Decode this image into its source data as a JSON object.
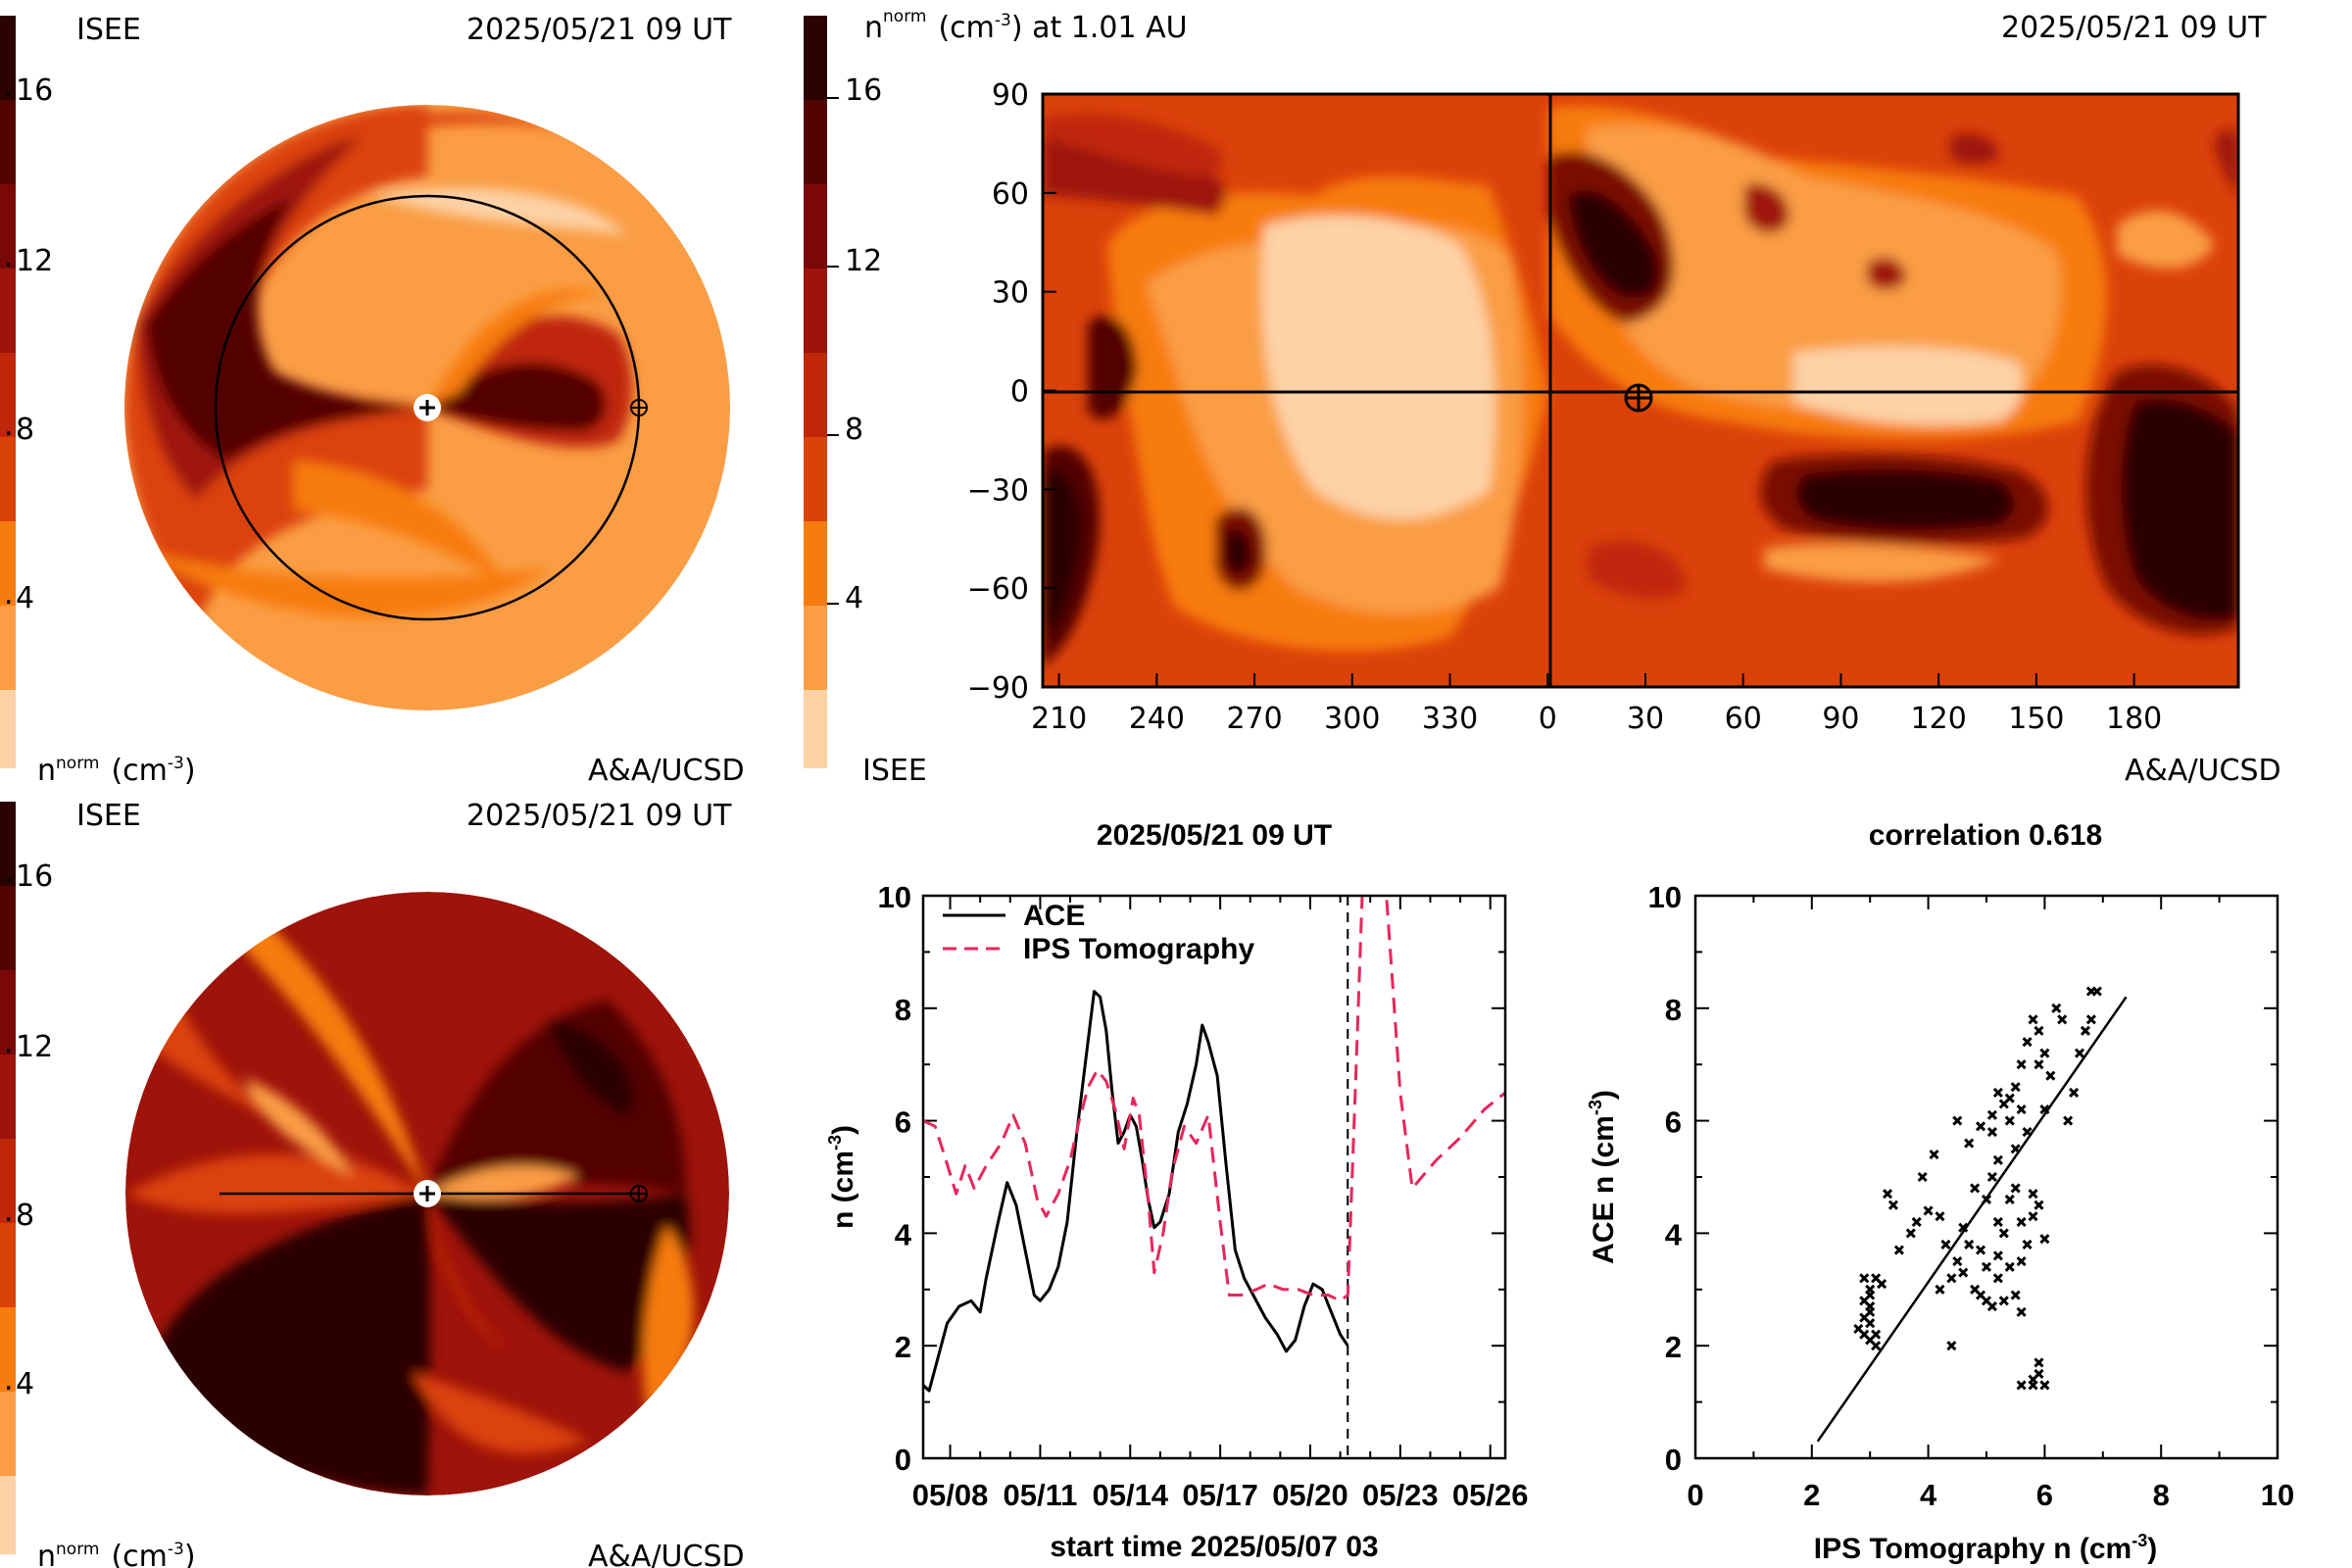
{
  "colors": {
    "scale": [
      "#fdd2a6",
      "#fa9d45",
      "#f77c0f",
      "#ec5a0b",
      "#db420a",
      "#c0270a",
      "#9e130a",
      "#7a0806",
      "#520401",
      "#2b0300"
    ],
    "ace_line": "#000000",
    "ips_line": "#e8265a"
  },
  "top_left": {
    "source": "ISEE",
    "date": "2025/05/21 09 UT",
    "unit_label": "n",
    "unit_sup": "norm",
    "unit_rest": "(cm",
    "unit_exp": "-3",
    "credit": "A&A/UCSD",
    "colorbar_ticks": [
      "4",
      "8",
      "12",
      "16"
    ]
  },
  "bottom_left": {
    "source": "ISEE",
    "date": "2025/05/21 09 UT",
    "unit_label": "n",
    "unit_sup": "norm",
    "unit_rest": "(cm",
    "unit_exp": "-3",
    "credit": "A&A/UCSD",
    "colorbar_ticks": [
      "4",
      "8",
      "12",
      "16"
    ]
  },
  "synoptic_map": {
    "title_n": "n",
    "title_sup": "norm",
    "title_rest": "(cm",
    "title_exp": "-3",
    "title_tail": ") at 1.01 AU",
    "date": "2025/05/21 09 UT",
    "source": "ISEE",
    "credit": "A&A/UCSD",
    "colorbar_ticks": [
      "4",
      "8",
      "12",
      "16"
    ],
    "lat_ticks": [
      "90",
      "60",
      "30",
      "0",
      "−30",
      "−60",
      "−90"
    ],
    "lon_ticks": [
      "210",
      "240",
      "270",
      "300",
      "330",
      "0",
      "30",
      "60",
      "90",
      "120",
      "150",
      "180"
    ]
  },
  "chart_data": [
    {
      "type": "line",
      "title": "2025/05/21 09 UT",
      "xlabel": "start time 2025/05/07 03",
      "ylabel_main": "n (cm",
      "ylabel_exp": "-3",
      "ylabel_close": ")",
      "x_tick_labels": [
        "05/08",
        "05/11",
        "05/14",
        "05/17",
        "05/20",
        "05/23",
        "05/26"
      ],
      "x_tick_days": [
        1,
        4,
        7,
        10,
        13,
        16,
        19
      ],
      "xlim_days": [
        0.1,
        19.5
      ],
      "ylim": [
        0,
        10
      ],
      "y_ticks": [
        "0",
        "2",
        "4",
        "6",
        "8",
        "10"
      ],
      "current_time_day": 14.25,
      "legend": "top-left",
      "series": [
        {
          "name": "ACE",
          "style": "solid",
          "points": [
            [
              0.1,
              1.3
            ],
            [
              0.3,
              1.2
            ],
            [
              0.6,
              1.8
            ],
            [
              0.9,
              2.4
            ],
            [
              1.3,
              2.7
            ],
            [
              1.7,
              2.8
            ],
            [
              2.0,
              2.6
            ],
            [
              2.2,
              3.2
            ],
            [
              2.6,
              4.2
            ],
            [
              2.9,
              4.9
            ],
            [
              3.2,
              4.5
            ],
            [
              3.5,
              3.7
            ],
            [
              3.8,
              2.9
            ],
            [
              4.0,
              2.8
            ],
            [
              4.3,
              3.0
            ],
            [
              4.6,
              3.4
            ],
            [
              4.9,
              4.2
            ],
            [
              5.2,
              5.7
            ],
            [
              5.5,
              7.0
            ],
            [
              5.8,
              8.3
            ],
            [
              6.0,
              8.2
            ],
            [
              6.2,
              7.6
            ],
            [
              6.4,
              6.5
            ],
            [
              6.6,
              5.6
            ],
            [
              6.8,
              5.8
            ],
            [
              7.0,
              6.1
            ],
            [
              7.2,
              5.9
            ],
            [
              7.4,
              5.3
            ],
            [
              7.6,
              4.6
            ],
            [
              7.8,
              4.1
            ],
            [
              8.0,
              4.2
            ],
            [
              8.3,
              4.7
            ],
            [
              8.6,
              5.8
            ],
            [
              8.9,
              6.3
            ],
            [
              9.2,
              7.0
            ],
            [
              9.4,
              7.7
            ],
            [
              9.6,
              7.4
            ],
            [
              9.9,
              6.8
            ],
            [
              10.2,
              5.2
            ],
            [
              10.5,
              3.7
            ],
            [
              10.8,
              3.2
            ],
            [
              11.1,
              2.9
            ],
            [
              11.5,
              2.5
            ],
            [
              11.9,
              2.2
            ],
            [
              12.2,
              1.9
            ],
            [
              12.5,
              2.1
            ],
            [
              12.8,
              2.7
            ],
            [
              13.1,
              3.1
            ],
            [
              13.4,
              3.0
            ],
            [
              13.7,
              2.6
            ],
            [
              14.0,
              2.2
            ],
            [
              14.25,
              2.0
            ]
          ]
        },
        {
          "name": "IPS Tomography",
          "style": "dashed",
          "points": [
            [
              0.1,
              6.0
            ],
            [
              0.5,
              5.9
            ],
            [
              0.8,
              5.4
            ],
            [
              1.2,
              4.7
            ],
            [
              1.5,
              5.2
            ],
            [
              1.8,
              4.8
            ],
            [
              2.2,
              5.2
            ],
            [
              2.7,
              5.6
            ],
            [
              3.1,
              6.1
            ],
            [
              3.5,
              5.6
            ],
            [
              3.9,
              4.6
            ],
            [
              4.2,
              4.3
            ],
            [
              4.6,
              4.7
            ],
            [
              5.0,
              5.3
            ],
            [
              5.3,
              6.0
            ],
            [
              5.6,
              6.6
            ],
            [
              5.9,
              6.9
            ],
            [
              6.2,
              6.7
            ],
            [
              6.5,
              6.2
            ],
            [
              6.8,
              5.5
            ],
            [
              7.1,
              6.4
            ],
            [
              7.3,
              6.1
            ],
            [
              7.6,
              4.6
            ],
            [
              7.8,
              3.3
            ],
            [
              8.1,
              4.0
            ],
            [
              8.4,
              5.1
            ],
            [
              8.8,
              5.9
            ],
            [
              9.2,
              5.6
            ],
            [
              9.6,
              6.1
            ],
            [
              10.0,
              4.2
            ],
            [
              10.3,
              2.9
            ],
            [
              10.7,
              2.9
            ],
            [
              11.2,
              3.0
            ],
            [
              11.6,
              3.1
            ],
            [
              12.1,
              3.0
            ],
            [
              12.6,
              3.0
            ],
            [
              13.1,
              2.9
            ],
            [
              13.6,
              2.9
            ],
            [
              14.0,
              2.8
            ],
            [
              14.25,
              2.9
            ],
            [
              14.5,
              6.5
            ],
            [
              14.75,
              10.3
            ],
            [
              15.5,
              10.3
            ],
            [
              16.0,
              6.5
            ],
            [
              16.4,
              4.8
            ],
            [
              17.2,
              5.3
            ],
            [
              18.0,
              5.7
            ],
            [
              18.8,
              6.2
            ],
            [
              19.5,
              6.5
            ]
          ]
        }
      ]
    },
    {
      "type": "scatter",
      "title": "correlation 0.618",
      "xlabel_main": "IPS Tomography n (cm",
      "xlabel_exp": "-3",
      "xlabel_close": ")",
      "ylabel_main": "ACE n (cm",
      "ylabel_exp": "-3",
      "ylabel_close": ")",
      "xlim": [
        0,
        10
      ],
      "ylim": [
        0,
        10
      ],
      "x_ticks": [
        "0",
        "2",
        "4",
        "6",
        "8",
        "10"
      ],
      "y_ticks": [
        "0",
        "2",
        "4",
        "6",
        "8",
        "10"
      ],
      "fit_line": [
        [
          2.1,
          0.3
        ],
        [
          7.4,
          8.2
        ]
      ],
      "points": [
        [
          2.9,
          2.2
        ],
        [
          3.0,
          2.4
        ],
        [
          3.0,
          2.6
        ],
        [
          2.9,
          2.8
        ],
        [
          3.0,
          3.0
        ],
        [
          3.1,
          3.2
        ],
        [
          3.0,
          2.1
        ],
        [
          2.8,
          2.3
        ],
        [
          3.1,
          2.0
        ],
        [
          2.9,
          2.5
        ],
        [
          3.0,
          2.7
        ],
        [
          3.2,
          3.1
        ],
        [
          2.9,
          3.2
        ],
        [
          3.0,
          2.9
        ],
        [
          3.1,
          2.2
        ],
        [
          3.3,
          4.7
        ],
        [
          3.4,
          4.5
        ],
        [
          3.5,
          3.7
        ],
        [
          3.7,
          4.0
        ],
        [
          3.8,
          4.2
        ],
        [
          3.9,
          5.0
        ],
        [
          4.0,
          4.4
        ],
        [
          4.1,
          5.4
        ],
        [
          4.2,
          4.3
        ],
        [
          4.3,
          3.8
        ],
        [
          4.4,
          2.0
        ],
        [
          4.5,
          3.5
        ],
        [
          4.6,
          4.1
        ],
        [
          4.7,
          5.6
        ],
        [
          4.8,
          4.8
        ],
        [
          4.5,
          6.0
        ],
        [
          4.6,
          3.3
        ],
        [
          4.8,
          3.0
        ],
        [
          4.9,
          2.9
        ],
        [
          5.0,
          2.8
        ],
        [
          5.1,
          2.7
        ],
        [
          5.2,
          3.6
        ],
        [
          5.0,
          4.6
        ],
        [
          5.1,
          5.0
        ],
        [
          5.2,
          5.3
        ],
        [
          5.3,
          6.3
        ],
        [
          5.2,
          6.5
        ],
        [
          5.1,
          5.8
        ],
        [
          5.4,
          6.0
        ],
        [
          5.5,
          5.5
        ],
        [
          5.5,
          6.6
        ],
        [
          5.6,
          6.2
        ],
        [
          5.6,
          7.0
        ],
        [
          5.7,
          5.8
        ],
        [
          5.7,
          7.4
        ],
        [
          5.8,
          7.8
        ],
        [
          5.9,
          7.0
        ],
        [
          5.9,
          7.6
        ],
        [
          6.0,
          6.2
        ],
        [
          6.0,
          7.2
        ],
        [
          6.1,
          6.8
        ],
        [
          6.2,
          8.0
        ],
        [
          6.3,
          7.8
        ],
        [
          6.4,
          6.0
        ],
        [
          6.5,
          6.5
        ],
        [
          6.6,
          7.2
        ],
        [
          6.7,
          7.6
        ],
        [
          6.8,
          8.3
        ],
        [
          6.9,
          8.3
        ],
        [
          6.8,
          7.8
        ],
        [
          5.8,
          4.7
        ],
        [
          5.8,
          4.3
        ],
        [
          5.9,
          4.5
        ],
        [
          6.0,
          3.9
        ],
        [
          5.6,
          3.5
        ],
        [
          5.4,
          3.4
        ],
        [
          5.3,
          2.8
        ],
        [
          5.6,
          2.6
        ],
        [
          5.6,
          1.3
        ],
        [
          5.8,
          1.4
        ],
        [
          5.9,
          1.5
        ],
        [
          6.0,
          1.3
        ],
        [
          5.9,
          1.7
        ],
        [
          5.8,
          1.3
        ],
        [
          5.5,
          2.9
        ],
        [
          5.3,
          4.0
        ],
        [
          5.4,
          4.6
        ],
        [
          4.9,
          3.7
        ],
        [
          4.7,
          3.8
        ],
        [
          5.0,
          3.4
        ],
        [
          4.2,
          3.0
        ],
        [
          4.4,
          3.2
        ],
        [
          5.5,
          4.8
        ],
        [
          5.2,
          4.2
        ],
        [
          4.9,
          5.9
        ],
        [
          5.1,
          6.1
        ],
        [
          5.4,
          6.4
        ],
        [
          5.7,
          3.8
        ],
        [
          5.6,
          4.2
        ],
        [
          5.2,
          3.2
        ]
      ]
    }
  ]
}
